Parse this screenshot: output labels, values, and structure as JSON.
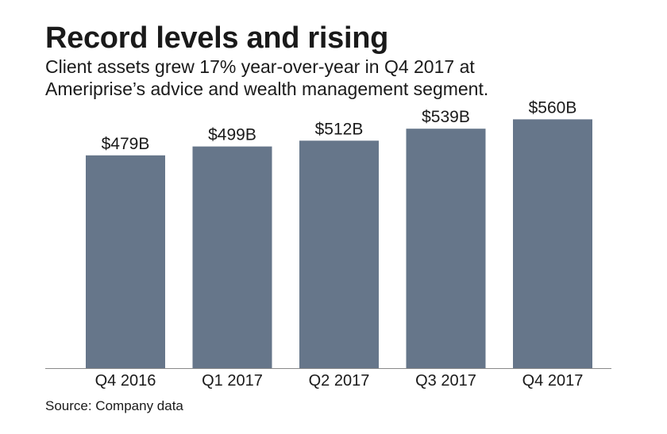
{
  "title": "Record levels and rising",
  "subtitle_lines": [
    "Client assets grew 17% year-over-year in Q4 2017 at",
    "Ameriprise’s advice and wealth management segment."
  ],
  "source": "Source: Company data",
  "colors": {
    "bar": "#66768a",
    "axis": "#8a8a8a",
    "text": "#1a1a1a"
  },
  "chart_data": {
    "type": "bar",
    "categories": [
      "Q4 2016",
      "Q1 2017",
      "Q2 2017",
      "Q3 2017",
      "Q4 2017"
    ],
    "values": [
      479,
      499,
      512,
      539,
      560
    ],
    "value_labels": [
      "$479B",
      "$499B",
      "$512B",
      "$539B",
      "$560B"
    ],
    "ylim": [
      0,
      650
    ],
    "grid": false
  }
}
